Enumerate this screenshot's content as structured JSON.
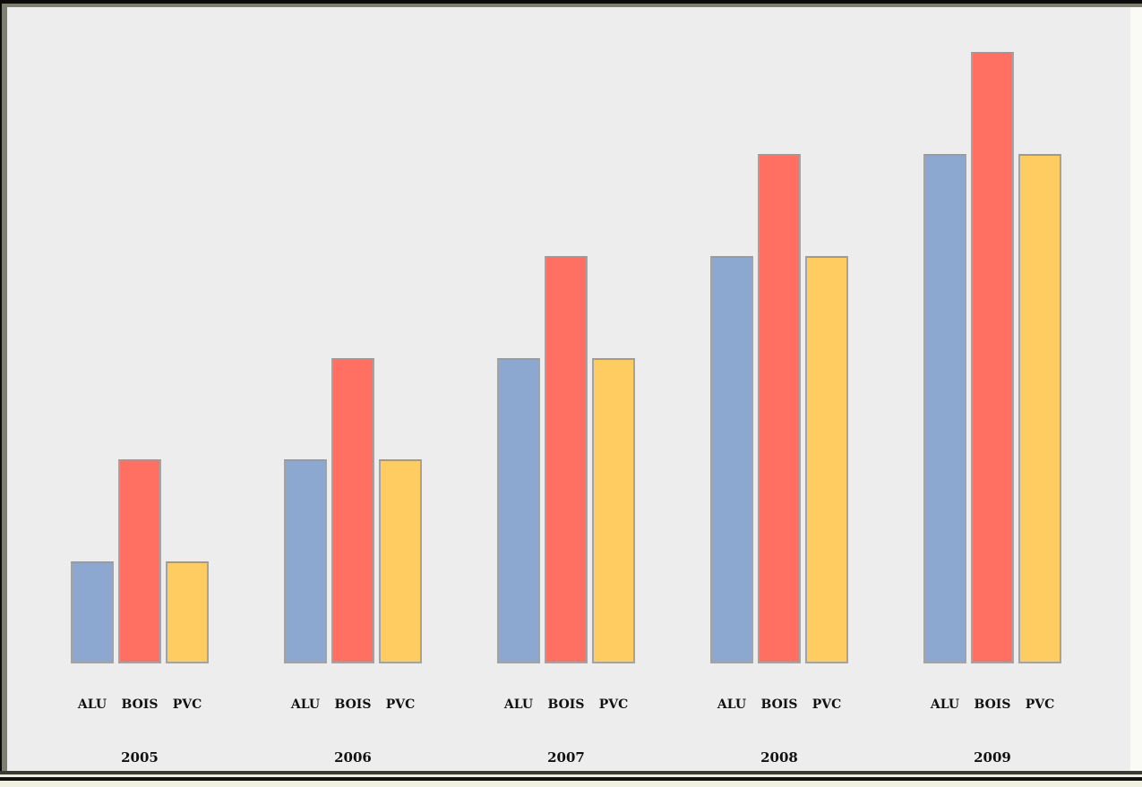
{
  "colors": {
    "plot_background": "#EEEDED",
    "frame_top_black": "#0B0B0B",
    "frame_bevel_olive": "#7E7E71",
    "frame_bottom_rule": "#121212",
    "bottom_margin_cream": "#F2F0E1",
    "bar_border": "#A3A3A3",
    "series_alu": "#8DA8D0",
    "series_bois": "#FF7062",
    "series_pvc": "#FFCC62"
  },
  "chart_data": {
    "type": "bar",
    "title": "",
    "xlabel": "",
    "ylabel": "",
    "categories": [
      "2005",
      "2006",
      "2007",
      "2008",
      "2009"
    ],
    "series": [
      {
        "name": "ALU",
        "color": "#8DA8D0",
        "values": [
          1,
          2,
          3,
          4,
          5
        ]
      },
      {
        "name": "BOIS",
        "color": "#FF7062",
        "values": [
          2,
          3,
          4,
          5,
          6
        ]
      },
      {
        "name": "PVC",
        "color": "#FFCC62",
        "values": [
          1,
          2,
          3,
          4,
          5
        ]
      }
    ],
    "ylim": [
      0,
      6.5
    ],
    "grid": false,
    "legend": "none",
    "value_axis_visible": false,
    "note": "No numeric axis shown; values are relative units estimated from bar heights (1 unit = ~114px). Each group of 3 bars is labeled ALU/BOIS/PVC beneath the bars, with the year below."
  }
}
